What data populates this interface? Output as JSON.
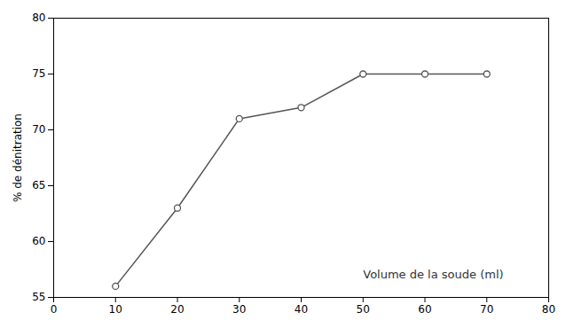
{
  "chart_data": {
    "type": "line",
    "x": [
      10,
      20,
      30,
      40,
      50,
      60,
      70
    ],
    "values": [
      56,
      63,
      71,
      72,
      75,
      75,
      75
    ],
    "color": "#555555",
    "marker": "circle",
    "ylabel": "% de dénitration",
    "xlim": [
      0,
      80
    ],
    "ylim": [
      55,
      80
    ],
    "xticks": [
      0,
      10,
      20,
      30,
      40,
      50,
      60,
      70,
      80
    ],
    "yticks": [
      55,
      60,
      65,
      70,
      75,
      80
    ],
    "grid": false,
    "annotations": [
      {
        "text": "Volume de la soude (ml)",
        "x": 50,
        "y": 57
      }
    ]
  }
}
